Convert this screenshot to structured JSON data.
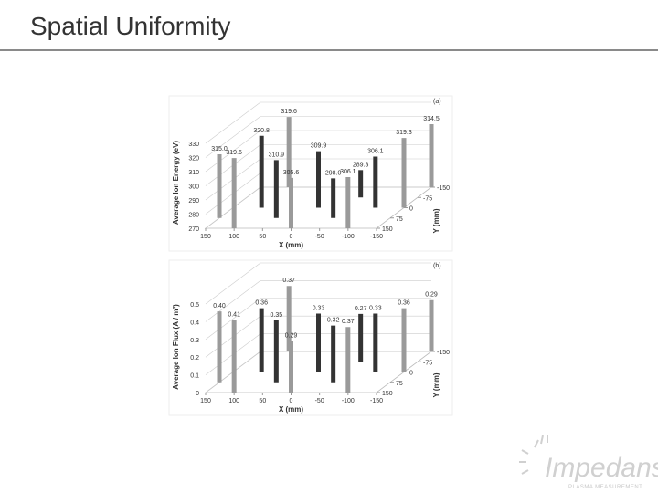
{
  "slide_title": "Spatial Uniformity",
  "logo": {
    "name": "Impedans",
    "tagline": "PLASMA MEASUREMENT"
  },
  "chart_data": [
    {
      "type": "bar3d",
      "panel_label": "(a)",
      "zlabel": "Average Ion Energy (eV)",
      "xlabel": "X (mm)",
      "ylabel": "Y (mm)",
      "xlim": [
        150,
        -150
      ],
      "xticks": [
        150,
        100,
        50,
        0,
        -50,
        -100,
        -150
      ],
      "ylim": [
        150,
        -150
      ],
      "yticks": [
        150,
        75,
        0,
        -75,
        -150
      ],
      "zlim": [
        270,
        330
      ],
      "zticks": [
        270,
        280,
        290,
        300,
        310,
        320,
        330
      ],
      "x": [
        150,
        100,
        100,
        100,
        50,
        0,
        0,
        -50,
        -50,
        -100,
        -100,
        -150,
        -150
      ],
      "y": [
        75,
        150,
        0,
        -150,
        75,
        150,
        0,
        -75,
        75,
        0,
        150,
        -150,
        0
      ],
      "values": [
        315.0,
        319.6,
        320.8,
        319.6,
        310.9,
        305.6,
        309.9,
        289.3,
        298.0,
        306.1,
        306.1,
        314.5,
        319.3
      ],
      "value_labels": [
        "315.0",
        "319.6",
        "320.8",
        "319.6",
        "310.9",
        "305.6",
        "309.9",
        "289.3",
        "298.0",
        "306.1",
        "306.1",
        "314.5",
        "319.3"
      ],
      "colors": [
        "#9a9a9a",
        "#9a9a9a",
        "#333333",
        "#9a9a9a",
        "#333333",
        "#9a9a9a",
        "#333333",
        "#333333",
        "#333333",
        "#333333",
        "#9a9a9a",
        "#9a9a9a",
        "#9a9a9a"
      ]
    },
    {
      "type": "bar3d",
      "panel_label": "(b)",
      "zlabel": "Average Ion Flux (A / m²)",
      "xlabel": "X (mm)",
      "ylabel": "Y (mm)",
      "xlim": [
        150,
        -150
      ],
      "xticks": [
        150,
        100,
        50,
        0,
        -50,
        -100,
        -150
      ],
      "ylim": [
        150,
        -150
      ],
      "yticks": [
        150,
        75,
        0,
        -75,
        -150
      ],
      "zlim": [
        0,
        0.5
      ],
      "zticks": [
        0,
        0.1,
        0.2,
        0.3,
        0.4,
        0.5
      ],
      "x": [
        150,
        100,
        100,
        100,
        50,
        0,
        0,
        -50,
        -50,
        -100,
        -100,
        -150,
        -150
      ],
      "y": [
        75,
        150,
        0,
        -150,
        75,
        150,
        0,
        -75,
        75,
        0,
        150,
        -150,
        0
      ],
      "values": [
        0.4,
        0.41,
        0.36,
        0.37,
        0.35,
        0.29,
        0.33,
        0.27,
        0.32,
        0.33,
        0.37,
        0.29,
        0.36
      ],
      "value_labels": [
        "0.40",
        "0.41",
        "0.36",
        "0.37",
        "0.35",
        "0.29",
        "0.33",
        "0.27",
        "0.32",
        "0.33",
        "0.37",
        "0.29",
        "0.36"
      ],
      "colors": [
        "#9a9a9a",
        "#9a9a9a",
        "#333333",
        "#9a9a9a",
        "#333333",
        "#9a9a9a",
        "#333333",
        "#333333",
        "#333333",
        "#333333",
        "#9a9a9a",
        "#9a9a9a",
        "#9a9a9a"
      ]
    }
  ]
}
